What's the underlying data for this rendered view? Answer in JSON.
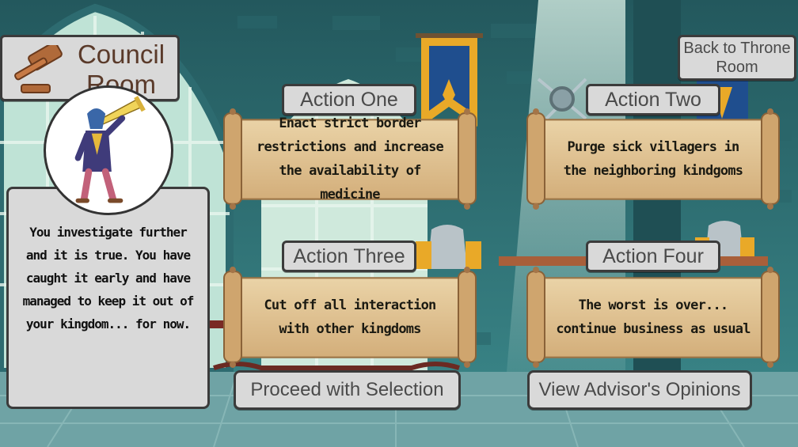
{
  "header": {
    "title": "Council Room",
    "back_button": "Back to Throne Room"
  },
  "advisor": {
    "message": "You investigate further and it is true. You have caught it early and have managed to keep it out of your kingdom... for now."
  },
  "actions": [
    {
      "label": "Action One",
      "text": "Enact strict border restrictions and increase the availability of medicine"
    },
    {
      "label": "Action Two",
      "text": "Purge sick villagers in the neighboring kindgoms"
    },
    {
      "label": "Action Three",
      "text": "Cut off all interaction with other kingdoms"
    },
    {
      "label": "Action Four",
      "text": "The worst is over... continue business as usual"
    }
  ],
  "footer": {
    "proceed_button": "Proceed with Selection",
    "advisor_button": "View Advisor's Opinions"
  },
  "colors": {
    "wall": "#2e6f74",
    "floor": "#6fa3a5",
    "parchment": "#e2c69a",
    "button": "#d9d9d9",
    "banner": "#e9a928",
    "banner_blue": "#1f4e8e"
  }
}
